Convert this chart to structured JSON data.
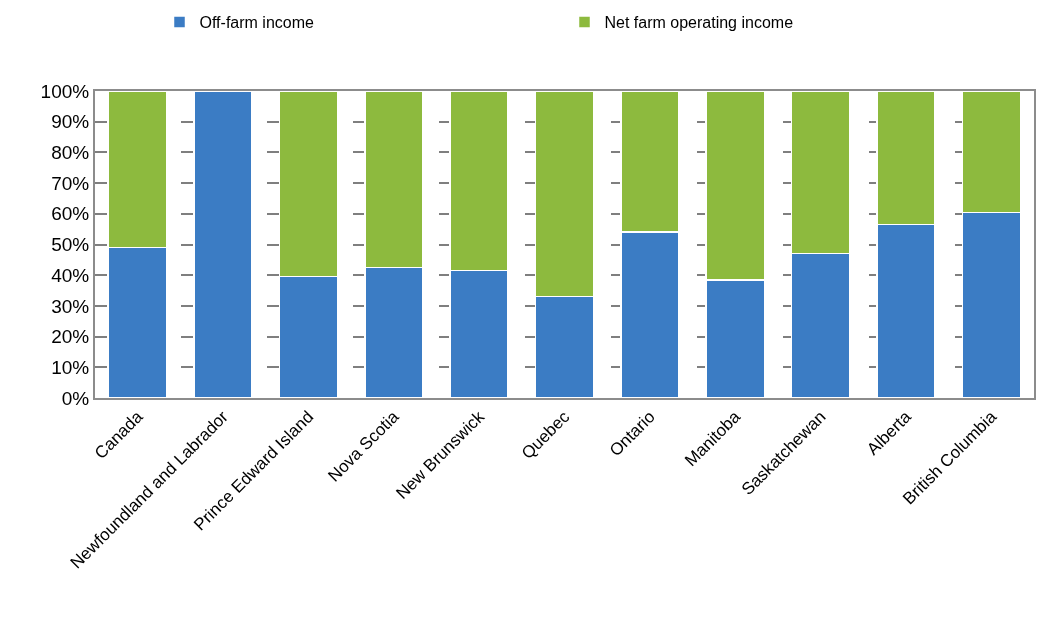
{
  "chart_data": {
    "type": "bar",
    "stacked": true,
    "categories": [
      "Canada",
      "Newfoundland and Labrador",
      "Prince Edward Island",
      "Nova Scotia",
      "New Brunswick",
      "Quebec",
      "Ontario",
      "Manitoba",
      "Saskatchewan",
      "Alberta",
      "British Columbia"
    ],
    "series": [
      {
        "name": "Off-farm income",
        "color": "#3b7cc4",
        "values": [
          49,
          100,
          39.5,
          42.5,
          41.5,
          33,
          54,
          38.5,
          47,
          56.5,
          60.5
        ]
      },
      {
        "name": "Net farm operating income",
        "color": "#8dba3e",
        "values": [
          51,
          0,
          60.5,
          57.5,
          58.5,
          67,
          46,
          61.5,
          53,
          43.5,
          39.5
        ]
      }
    ],
    "ylim": [
      0,
      100
    ],
    "yticks": [
      {
        "value": 0,
        "label": "0%"
      },
      {
        "value": 10,
        "label": "10%"
      },
      {
        "value": 20,
        "label": "20%"
      },
      {
        "value": 30,
        "label": "30%"
      },
      {
        "value": 40,
        "label": "40%"
      },
      {
        "value": 50,
        "label": "50%"
      },
      {
        "value": 60,
        "label": "60%"
      },
      {
        "value": 70,
        "label": "70%"
      },
      {
        "value": 80,
        "label": "80%"
      },
      {
        "value": 90,
        "label": "90%"
      },
      {
        "value": 100,
        "label": "100%"
      }
    ],
    "grid": "y",
    "legend": "top"
  }
}
